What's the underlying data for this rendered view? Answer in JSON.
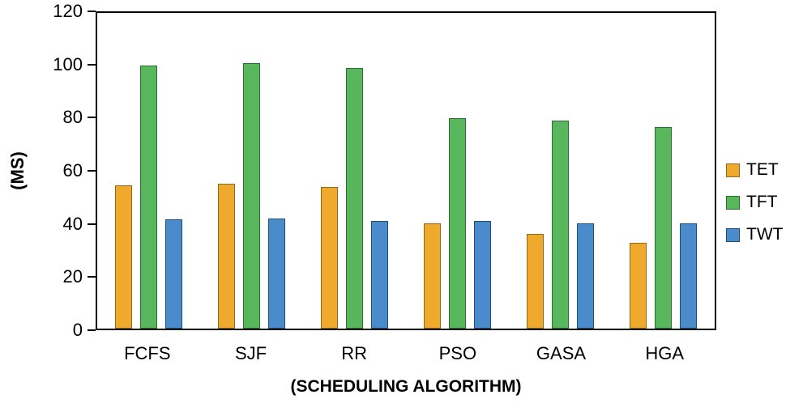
{
  "chart_data": {
    "type": "bar",
    "title": "",
    "xlabel": "(SCHEDULING ALGORITHM)",
    "ylabel": "(MS)",
    "ylim": [
      0,
      120
    ],
    "yticks": [
      0,
      20,
      40,
      60,
      80,
      100,
      120
    ],
    "grid": false,
    "legend_position": "right",
    "categories": [
      "FCFS",
      "SJF",
      "RR",
      "PSO",
      "GASA",
      "HGA"
    ],
    "series": [
      {
        "name": "TET",
        "color": "#EFA92D",
        "border_color": "#8F6A1A",
        "values": [
          54.5,
          55,
          54,
          40,
          36,
          32.5
        ]
      },
      {
        "name": "TFT",
        "color": "#58B65C",
        "border_color": "#2C6E31",
        "values": [
          100,
          101,
          99,
          80,
          79,
          76.5
        ]
      },
      {
        "name": "TWT",
        "color": "#4A8CCB",
        "border_color": "#1F4E79",
        "values": [
          41.5,
          42,
          41,
          41,
          40,
          40
        ]
      }
    ]
  }
}
